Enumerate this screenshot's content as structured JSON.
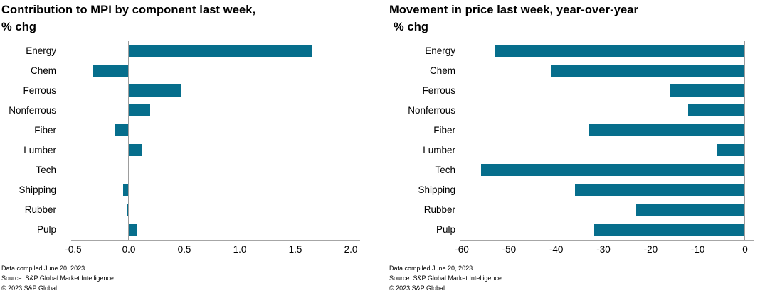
{
  "page": {
    "background": "#ffffff",
    "bar_color": "#066e8c",
    "axis_color": "#a6a6a6",
    "zero_line_color": "#9d9d9d"
  },
  "notes": [
    "Data compiled June 20, 2023.",
    "Source: S&P Global Market Intelligence.",
    "© 2023 S&P Global."
  ],
  "chart_data": [
    {
      "type": "bar",
      "orientation": "horizontal",
      "title": "Contribution to MPI by component last week,",
      "subtitle": "% chg",
      "categories": [
        "Energy",
        "Chem",
        "Ferrous",
        "Nonferrous",
        "Fiber",
        "Lumber",
        "Tech",
        "Shipping",
        "Rubber",
        "Pulp"
      ],
      "values": [
        1.65,
        -0.32,
        0.47,
        0.19,
        -0.13,
        0.12,
        0.0,
        -0.05,
        -0.02,
        0.08
      ],
      "xlim": [
        -0.5,
        2.0
      ],
      "xticks": [
        "-0.5",
        "0.0",
        "0.5",
        "1.0",
        "1.5",
        "2.0"
      ],
      "bar_color": "#066e8c",
      "grid": false,
      "legend": "none",
      "zero_line": true
    },
    {
      "type": "bar",
      "orientation": "horizontal",
      "title": "Movement in price last week, year-over-year",
      "subtitle": "% chg",
      "categories": [
        "Energy",
        "Chem",
        "Ferrous",
        "Nonferrous",
        "Fiber",
        "Lumber",
        "Tech",
        "Shipping",
        "Rubber",
        "Pulp"
      ],
      "values": [
        -53,
        -41,
        -16,
        -12,
        -33,
        -6,
        -56,
        -36,
        -23,
        -32
      ],
      "xlim": [
        -60,
        0
      ],
      "xticks": [
        "-60",
        "-50",
        "-40",
        "-30",
        "-20",
        "-10",
        "0"
      ],
      "bar_color": "#066e8c",
      "grid": false,
      "legend": "none",
      "zero_line": true
    }
  ]
}
